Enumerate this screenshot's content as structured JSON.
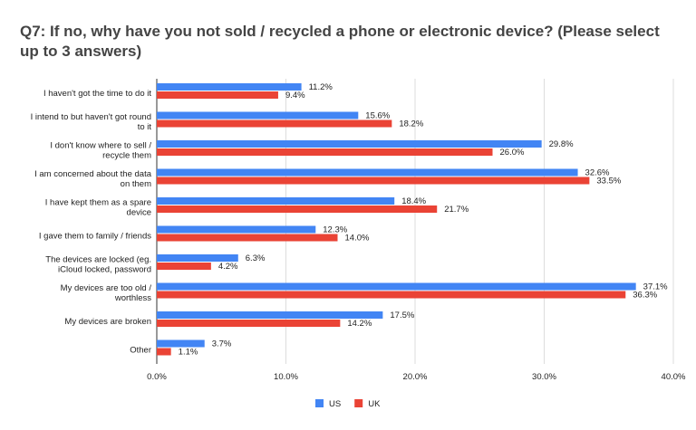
{
  "chart_data": {
    "type": "hbar",
    "title": "Q7: If no, why have you not sold / recycled a phone or electronic device? (Please select up to 3 answers)",
    "categories": [
      "I haven't got the time to do it",
      "I intend to but haven't got round to it",
      "I don't know where to sell / recycle them",
      "I am concerned about the data on them",
      "I have kept them as a spare device",
      "I gave them to family / friends",
      "The devices are locked (eg. iCloud locked, password",
      "My devices are too old / worthless",
      "My devices are broken",
      "Other"
    ],
    "series": [
      {
        "name": "US",
        "color": "#4285f4",
        "values": [
          11.2,
          15.6,
          29.8,
          32.6,
          18.4,
          12.3,
          6.3,
          37.1,
          17.5,
          3.7
        ],
        "value_labels": [
          "11.2%",
          "15.6%",
          "29.8%",
          "32.6%",
          "18.4%",
          "12.3%",
          "6.3%",
          "37.1%",
          "17.5%",
          "3.7%"
        ]
      },
      {
        "name": "UK",
        "color": "#ea4335",
        "values": [
          9.4,
          18.2,
          26.0,
          33.5,
          21.7,
          14.0,
          4.2,
          36.3,
          14.2,
          1.1
        ],
        "value_labels": [
          "9.4%",
          "18.2%",
          "26.0%",
          "33.5%",
          "21.7%",
          "14.0%",
          "4.2%",
          "36.3%",
          "14.2%",
          "1.1%"
        ]
      }
    ],
    "xlim": [
      0,
      40
    ],
    "xticks": [
      {
        "value": 0,
        "label": "0.0%"
      },
      {
        "value": 10,
        "label": "10.0%"
      },
      {
        "value": 20,
        "label": "20.0%"
      },
      {
        "value": 30,
        "label": "30.0%"
      },
      {
        "value": 40,
        "label": "40.0%"
      }
    ],
    "grid": true,
    "legend": "bottom"
  }
}
